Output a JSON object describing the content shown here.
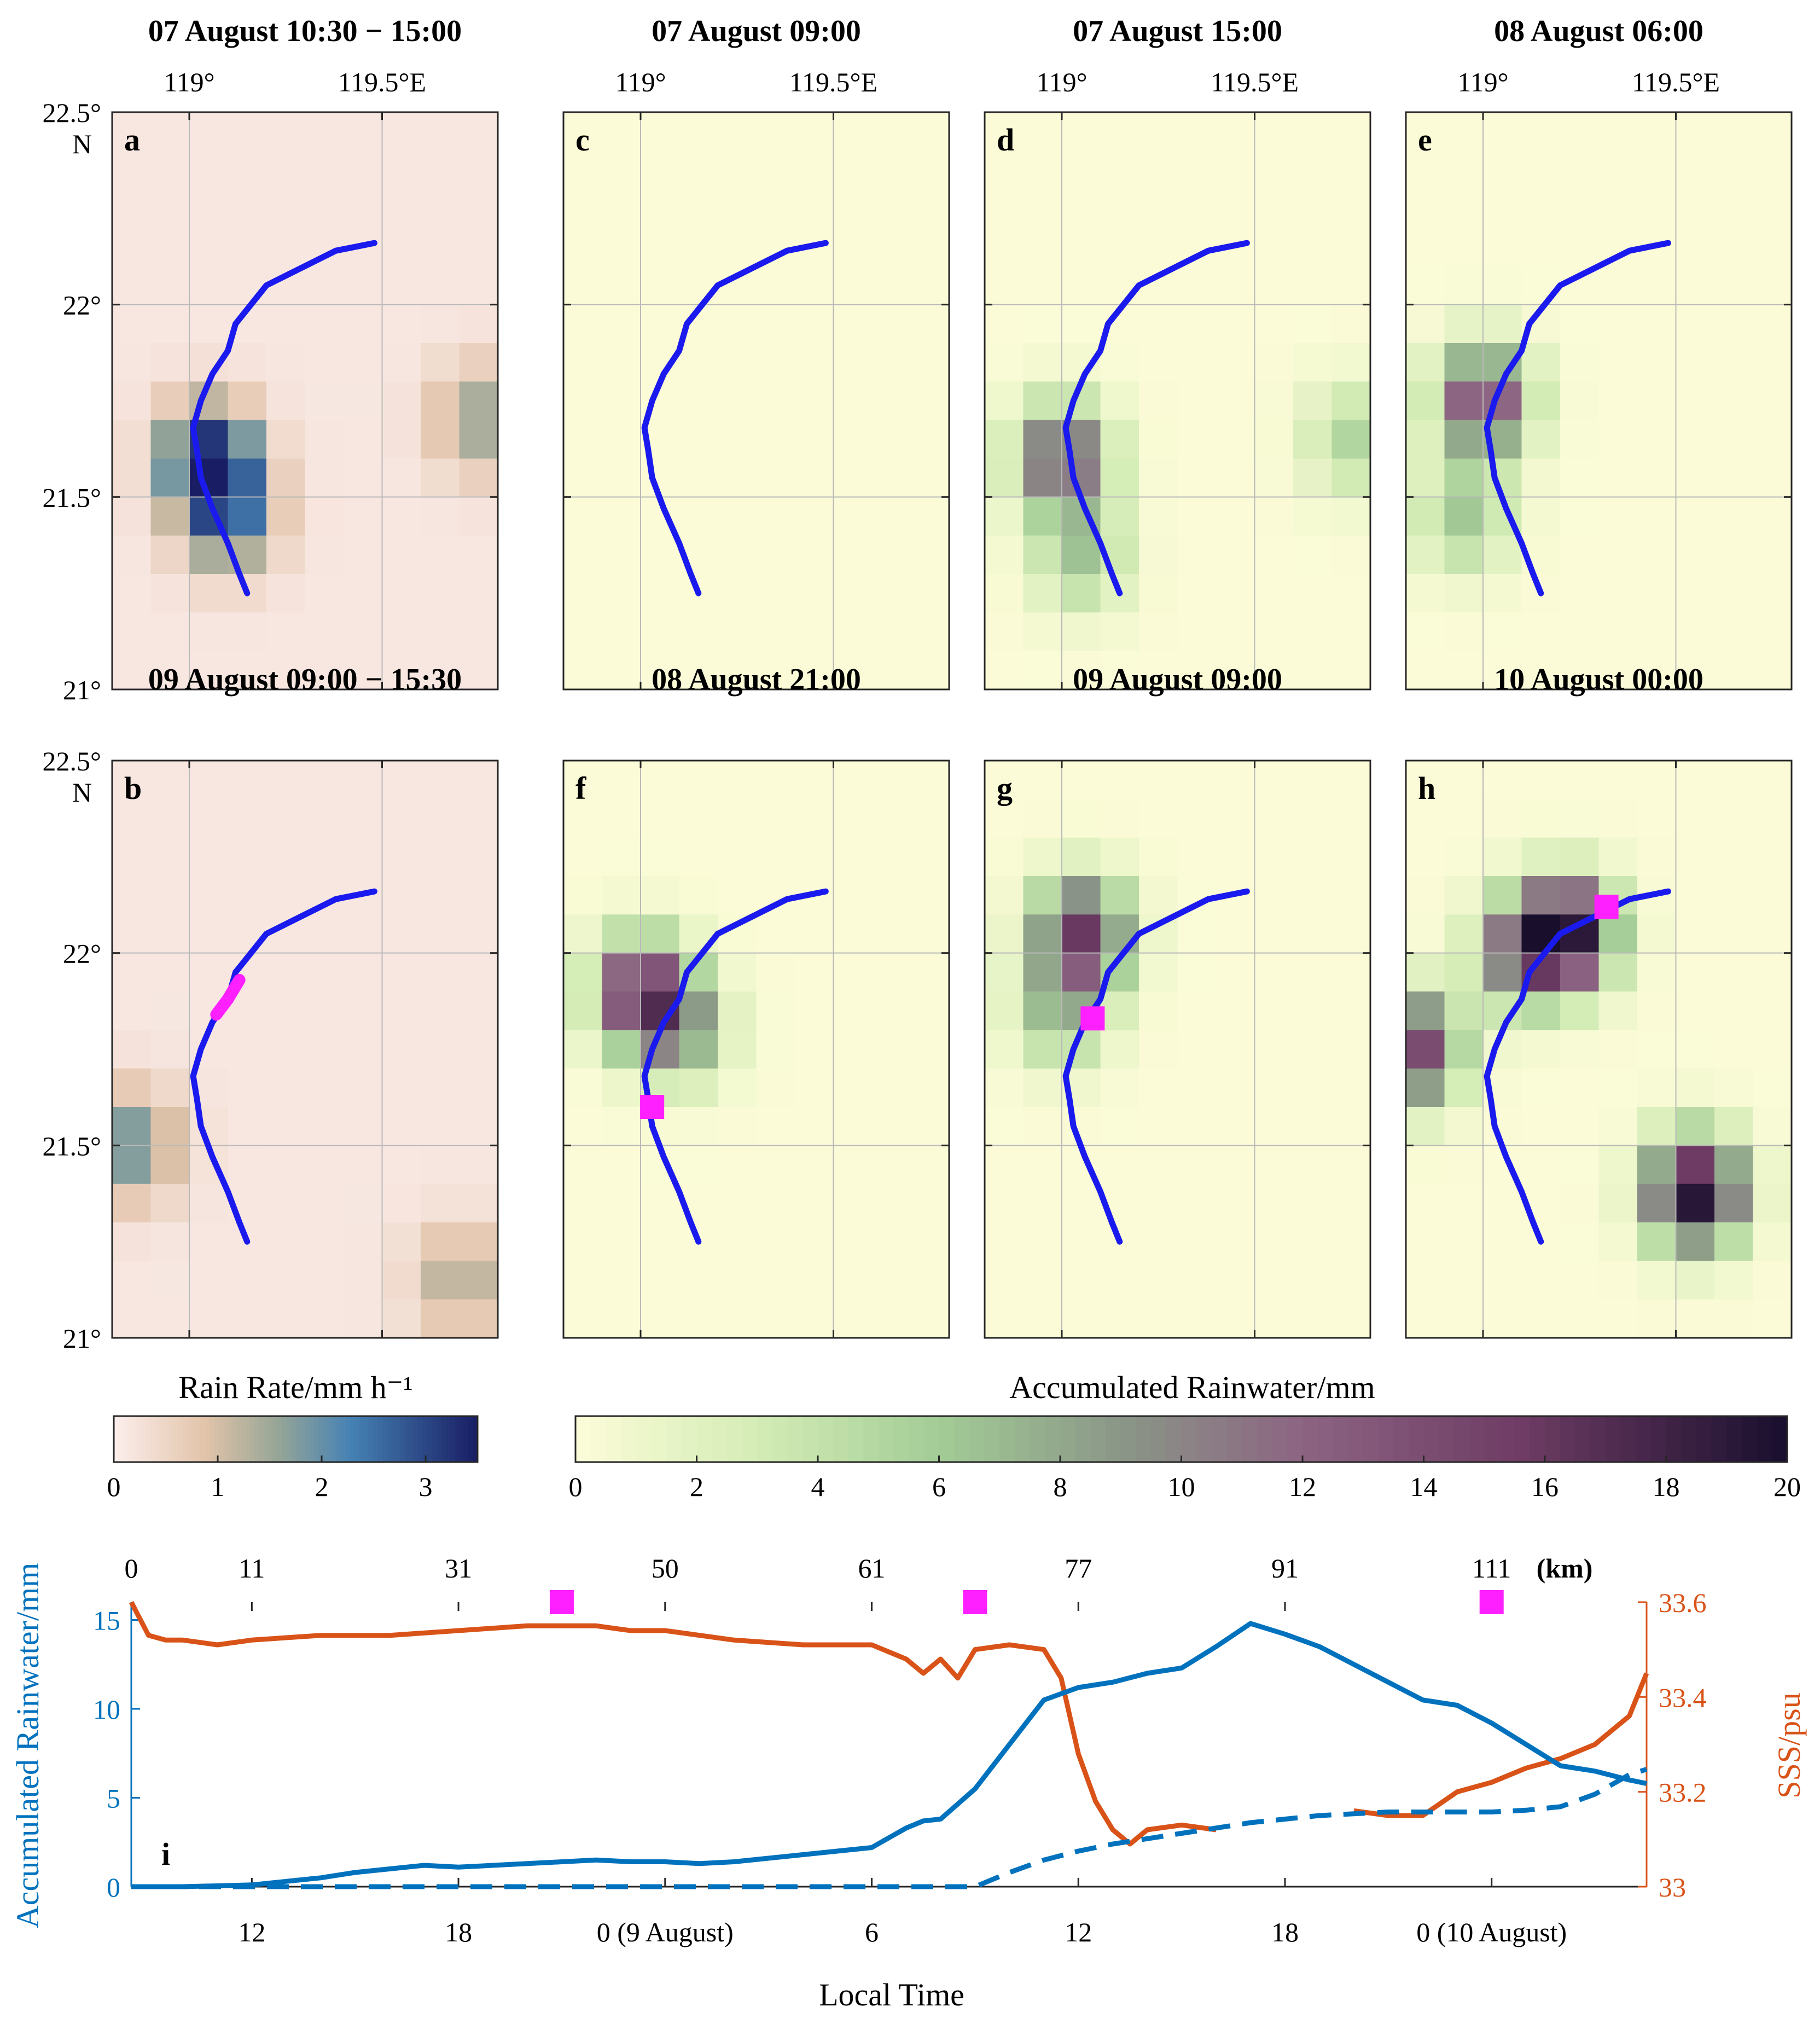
{
  "chart_data": {
    "type": "figure",
    "map_panels": [
      {
        "id": "a",
        "label": "a",
        "title": "07 August 10:30 − 15:00",
        "field": "rain_rate",
        "lon_ticks": [
          "119°",
          "119.5°E"
        ],
        "lat_ticks": [
          "22.5°",
          "N",
          "22°",
          "21.5°",
          "21°"
        ],
        "blobs": [
          {
            "lon": 119.05,
            "lat": 21.6,
            "value": 3.2
          },
          {
            "lon": 119.1,
            "lat": 21.45,
            "value": 2.2
          },
          {
            "lon": 119.75,
            "lat": 21.7,
            "value": 1.4
          }
        ],
        "markers": []
      },
      {
        "id": "b",
        "label": "b",
        "title": "09 August 09:00 − 15:30",
        "field": "rain_rate",
        "lon_ticks": [
          "119°",
          "119.5°E"
        ],
        "lat_ticks": [
          "22.5°",
          "N",
          "22°",
          "21.5°",
          "21°"
        ],
        "blobs": [
          {
            "lon": 118.85,
            "lat": 21.5,
            "value": 1.8
          },
          {
            "lon": 119.7,
            "lat": 21.15,
            "value": 1.2
          }
        ],
        "markers": []
      },
      {
        "id": "c",
        "label": "c",
        "title": "07 August 09:00",
        "field": "accum",
        "lon_ticks": [
          "119°",
          "119.5°E"
        ],
        "lat_ticks": [],
        "blobs": [],
        "markers": []
      },
      {
        "id": "d",
        "label": "d",
        "title": "07 August 15:00",
        "field": "accum",
        "lon_ticks": [
          "119°",
          "119.5°E"
        ],
        "lat_ticks": [],
        "blobs": [
          {
            "lon": 119.0,
            "lat": 21.6,
            "value": 13
          },
          {
            "lon": 119.05,
            "lat": 21.35,
            "value": 6
          },
          {
            "lon": 119.75,
            "lat": 21.65,
            "value": 5
          }
        ],
        "markers": []
      },
      {
        "id": "e",
        "label": "e",
        "title": "08 August 06:00",
        "field": "accum",
        "lon_ticks": [
          "119°",
          "119.5°E"
        ],
        "lat_ticks": [],
        "blobs": [
          {
            "lon": 119.0,
            "lat": 21.75,
            "value": 14
          },
          {
            "lon": 118.95,
            "lat": 21.45,
            "value": 6
          }
        ],
        "markers": []
      },
      {
        "id": "f",
        "label": "f",
        "title": "08 August 21:00",
        "field": "accum",
        "lon_ticks": [
          "119°",
          "119.5°E"
        ],
        "lat_ticks": [],
        "blobs": [
          {
            "lon": 119.0,
            "lat": 21.9,
            "value": 15
          },
          {
            "lon": 119.1,
            "lat": 21.8,
            "value": 8
          }
        ],
        "markers": [
          {
            "lon": 119.03,
            "lat": 21.6
          }
        ]
      },
      {
        "id": "g",
        "label": "g",
        "title": "09 August 09:00",
        "field": "accum",
        "lon_ticks": [
          "119°",
          "119.5°E"
        ],
        "lat_ticks": [],
        "blobs": [
          {
            "lon": 119.05,
            "lat": 22.05,
            "value": 15
          },
          {
            "lon": 119.0,
            "lat": 21.85,
            "value": 7
          }
        ],
        "markers": [
          {
            "lon": 119.08,
            "lat": 21.83
          }
        ]
      },
      {
        "id": "h",
        "label": "h",
        "title": "10 August 00:00",
        "field": "accum",
        "lon_ticks": [
          "119°",
          "119.5°E"
        ],
        "lat_ticks": [],
        "blobs": [
          {
            "lon": 119.22,
            "lat": 22.05,
            "value": 18
          },
          {
            "lon": 119.55,
            "lat": 21.38,
            "value": 20
          },
          {
            "lon": 118.82,
            "lat": 21.75,
            "value": 15
          },
          {
            "lon": 119.1,
            "lat": 22.0,
            "value": 11
          }
        ],
        "markers": [
          {
            "lon": 119.32,
            "lat": 22.12
          }
        ]
      }
    ],
    "map_extent": {
      "lon": [
        118.8,
        119.8
      ],
      "lat": [
        21.0,
        22.5
      ]
    },
    "ship_track": {
      "lon": [
        119.15,
        119.13,
        119.1,
        119.06,
        119.03,
        119.02,
        119.01,
        119.03,
        119.06,
        119.1,
        119.12,
        119.2,
        119.3,
        119.38,
        119.48
      ],
      "lat": [
        21.25,
        21.3,
        21.38,
        21.47,
        21.55,
        21.62,
        21.68,
        21.75,
        21.82,
        21.88,
        21.95,
        22.05,
        22.1,
        22.14,
        22.16
      ]
    },
    "colorbars": [
      {
        "label": "Rain Rate/mm h⁻¹",
        "ticks": [
          "0",
          "1",
          "2",
          "3"
        ],
        "range": [
          0,
          3.5
        ]
      },
      {
        "label": "Accumulated Rainwater/mm",
        "ticks": [
          "0",
          "2",
          "4",
          "6",
          "8",
          "10",
          "12",
          "14",
          "16",
          "18",
          "20"
        ],
        "range": [
          0,
          20
        ]
      }
    ],
    "timeseries": {
      "label": "i",
      "xlabel": "Local Time",
      "ylabel_left": "Accumulated Rainwater/mm",
      "ylabel_right": "SSS/psu",
      "x_tick_labels": [
        "12",
        "18",
        "0 (9 August)",
        "6",
        "12",
        "18",
        "0 (10 August)"
      ],
      "x_tick_hours": [
        12,
        18,
        24,
        30,
        36,
        42,
        48
      ],
      "km_tick_labels": [
        "0",
        "11",
        "31",
        "50",
        "61",
        "77",
        "91",
        "111"
      ],
      "km_unit": "(km)",
      "km_tick_hours": [
        8.5,
        12,
        18,
        24,
        30,
        36,
        42,
        48
      ],
      "xlim_hours": [
        8.5,
        52.5
      ],
      "ylim_left": [
        0,
        16
      ],
      "yticks_left": [
        "0",
        "5",
        "10",
        "15"
      ],
      "ylim_right": [
        33.0,
        33.6
      ],
      "yticks_right": [
        "33",
        "33.2",
        "33.4",
        "33.6"
      ],
      "marker_hours": [
        21,
        33,
        48
      ],
      "series": [
        {
          "name": "Accumulated rainwater (solid)",
          "hours": [
            8.5,
            10,
            12,
            14,
            15,
            16,
            17,
            18,
            19,
            20,
            21,
            22,
            23,
            24,
            25,
            26,
            27,
            28,
            29,
            30,
            31,
            31.5,
            32,
            33,
            34,
            35,
            36,
            37,
            38,
            39,
            40,
            41,
            42,
            43,
            44,
            45,
            46,
            47,
            48,
            49,
            50,
            51,
            52,
            52.5
          ],
          "values": [
            0,
            0,
            0.1,
            0.5,
            0.8,
            1.0,
            1.2,
            1.1,
            1.2,
            1.3,
            1.4,
            1.5,
            1.4,
            1.4,
            1.3,
            1.4,
            1.6,
            1.8,
            2.0,
            2.2,
            3.3,
            3.7,
            3.8,
            5.5,
            8,
            10.5,
            11.2,
            11.5,
            12,
            12.3,
            13.5,
            14.8,
            14.2,
            13.5,
            12.5,
            11.5,
            10.5,
            10.2,
            9.2,
            8,
            6.8,
            6.5,
            6.0,
            5.8
          ]
        },
        {
          "name": "Accumulated rainwater (dashed)",
          "hours": [
            8.5,
            33,
            34,
            35,
            36,
            37,
            38,
            39,
            40,
            41,
            42,
            43,
            44,
            45,
            46,
            47,
            48,
            49,
            50,
            51,
            52,
            52.5
          ],
          "values": [
            0,
            0,
            0.8,
            1.5,
            2,
            2.4,
            2.7,
            3.0,
            3.3,
            3.6,
            3.8,
            4.0,
            4.1,
            4.2,
            4.2,
            4.2,
            4.2,
            4.3,
            4.5,
            5.2,
            6.3,
            6.6
          ]
        },
        {
          "name": "SSS",
          "hours": [
            8.5,
            9,
            9.5,
            10,
            11,
            12,
            14,
            16,
            18,
            20,
            21,
            22,
            23,
            24,
            26,
            28,
            30,
            31,
            31.5,
            32,
            32.5,
            33,
            34,
            35,
            35.5,
            36,
            36.5,
            37,
            37.5,
            38,
            39,
            40,
            42,
            44,
            45,
            46,
            47,
            48,
            49,
            50,
            51,
            52,
            52.5
          ],
          "values": [
            33.6,
            33.53,
            33.52,
            33.52,
            33.51,
            33.52,
            33.53,
            33.53,
            33.54,
            33.55,
            33.55,
            33.55,
            33.54,
            33.54,
            33.52,
            33.51,
            33.51,
            33.48,
            33.45,
            33.48,
            33.44,
            33.5,
            33.51,
            33.5,
            33.44,
            33.28,
            33.18,
            33.12,
            33.09,
            33.12,
            33.13,
            33.12,
            null,
            33.16,
            33.15,
            33.15,
            33.2,
            33.22,
            33.25,
            33.27,
            33.3,
            33.36,
            33.45
          ]
        }
      ]
    }
  }
}
